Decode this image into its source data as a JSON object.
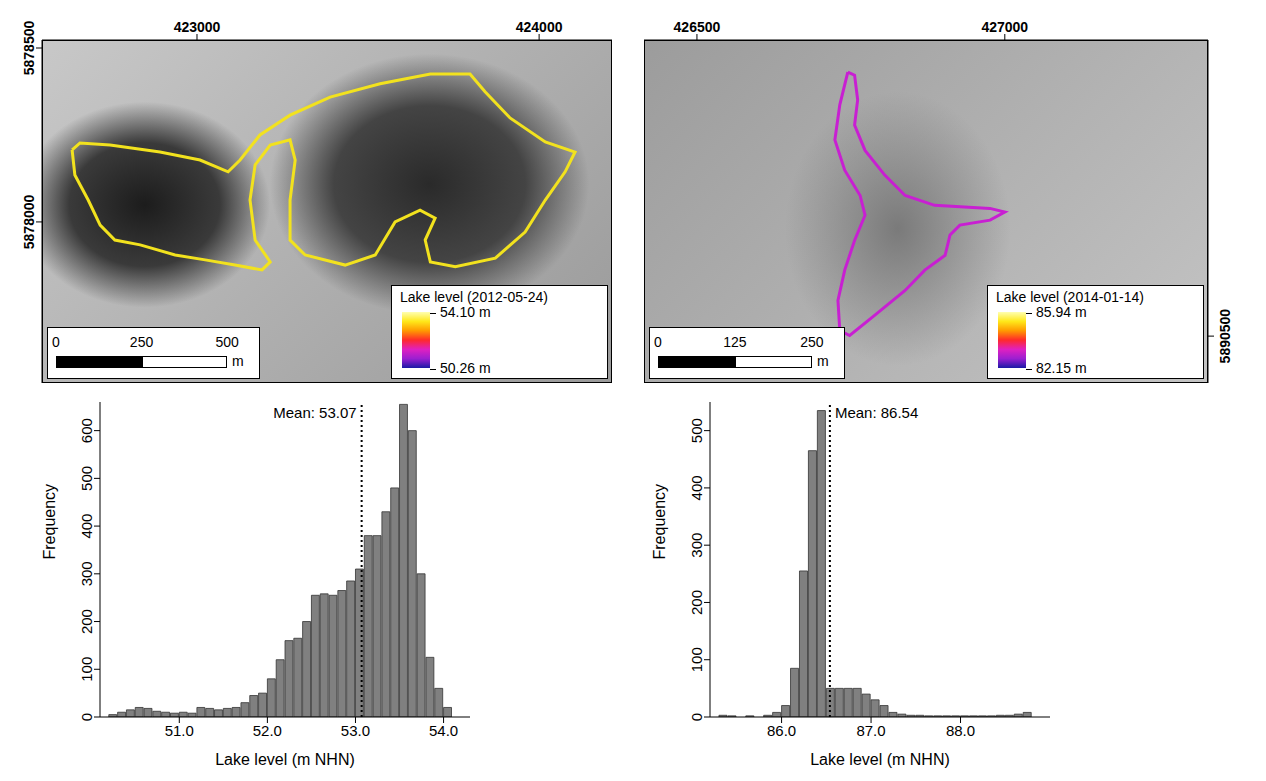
{
  "chart_data": [
    {
      "type": "map",
      "xlim": [
        422547,
        424213
      ],
      "ylim": [
        5877537,
        5878523
      ],
      "xticks": [
        423000,
        424000
      ],
      "yticks": [
        5878000,
        5878500
      ],
      "tick_labels": true,
      "x": [
        422635,
        422658,
        422746,
        422892,
        423009,
        423091,
        423126,
        423184,
        423272,
        423389,
        423535,
        423682,
        423798,
        423842,
        423915,
        424018,
        424105,
        424076,
        424018,
        423959,
        423872,
        423755,
        423682,
        423667,
        423696,
        423652,
        423579,
        423521,
        423433,
        423316,
        423272,
        423272,
        423287,
        423272,
        423214,
        423170,
        423155,
        423170,
        423214,
        423190,
        423111,
        423024,
        422936,
        422834,
        422760,
        422717,
        422682,
        422643,
        422635
      ],
      "y": [
        5878207,
        5878227,
        5878221,
        5878201,
        5878178,
        5878144,
        5878178,
        5878250,
        5878307,
        5878359,
        5878397,
        5878425,
        5878425,
        5878374,
        5878299,
        5878230,
        5878201,
        5878144,
        5878063,
        5877971,
        5877896,
        5877871,
        5877885,
        5877948,
        5878011,
        5878034,
        5878000,
        5877905,
        5877876,
        5877905,
        5877948,
        5878063,
        5878178,
        5878236,
        5878221,
        5878164,
        5878063,
        5877948,
        5877885,
        5877862,
        5877876,
        5877891,
        5877905,
        5877934,
        5877948,
        5877991,
        5878063,
        5878135,
        5878207
      ],
      "color": "#f2e21e",
      "colorbar": {
        "title": "Lake level (2012-05-24)",
        "range": [
          50.26,
          54.1
        ],
        "ticks": [
          {
            "value": 54.1,
            "label": "54.10 m"
          },
          {
            "value": 50.26,
            "label": "50.26 m"
          }
        ],
        "colors": [
          "#1a1aa6",
          "#9b1fd1",
          "#e020c0",
          "#ff2a2a",
          "#ff9a00",
          "#ffe81a",
          "#ffffb0"
        ]
      },
      "scale_bar": {
        "ticks": [
          0,
          250,
          500
        ],
        "unit": "m"
      }
    },
    {
      "type": "map",
      "xlim": [
        426414,
        427330
      ],
      "ylim": [
        5890424,
        5890980
      ],
      "xticks": [
        426500,
        427000
      ],
      "yticks": [
        5890500
      ],
      "tick_labels": true,
      "x": [
        426745,
        426756,
        426761,
        426756,
        426773,
        426805,
        426838,
        426886,
        426976,
        427000,
        426976,
        426927,
        426911,
        426903,
        426870,
        426838,
        426789,
        426748,
        426732,
        426729,
        426740,
        426756,
        426773,
        426765,
        426740,
        426724,
        426732,
        426745
      ],
      "y": [
        5890928,
        5890923,
        5890883,
        5890842,
        5890801,
        5890761,
        5890728,
        5890712,
        5890707,
        5890701,
        5890688,
        5890680,
        5890664,
        5890631,
        5890607,
        5890574,
        5890534,
        5890501,
        5890509,
        5890558,
        5890607,
        5890655,
        5890696,
        5890728,
        5890769,
        5890818,
        5890875,
        5890928
      ],
      "color": "#c81fd2",
      "colorbar": {
        "title": "Lake level (2014-01-14)",
        "range": [
          82.15,
          85.94
        ],
        "ticks": [
          {
            "value": 85.94,
            "label": "85.94 m"
          },
          {
            "value": 82.15,
            "label": "82.15 m"
          }
        ],
        "colors": [
          "#1a1aa6",
          "#9b1fd1",
          "#e020c0",
          "#ff2a2a",
          "#ff9a00",
          "#ffe81a",
          "#ffffb0"
        ]
      },
      "scale_bar": {
        "ticks": [
          0,
          125,
          250
        ],
        "unit": "m"
      }
    },
    {
      "type": "histogram",
      "x_label": "Lake level (m NHN)",
      "y_label": "Frequency",
      "color": "#808080",
      "bins": [
        50.2,
        50.3,
        50.4,
        50.5,
        50.6,
        50.7,
        50.8,
        50.9,
        51.0,
        51.1,
        51.2,
        51.3,
        51.4,
        51.5,
        51.6,
        51.7,
        51.8,
        51.9,
        52.0,
        52.1,
        52.2,
        52.3,
        52.4,
        52.5,
        52.6,
        52.7,
        52.8,
        52.9,
        53.0,
        53.1,
        53.2,
        53.3,
        53.4,
        53.5,
        53.6,
        53.7,
        53.8,
        53.9,
        54.0,
        54.1
      ],
      "values": [
        5,
        10,
        15,
        20,
        18,
        12,
        10,
        8,
        10,
        8,
        20,
        18,
        15,
        18,
        20,
        30,
        45,
        50,
        80,
        120,
        160,
        165,
        200,
        255,
        258,
        255,
        265,
        285,
        310,
        380,
        380,
        430,
        480,
        655,
        600,
        300,
        125,
        60,
        20
      ],
      "xlim": [
        50.1,
        54.3
      ],
      "ylim": [
        0,
        660
      ],
      "xticks": [
        {
          "value": 51,
          "label": "51.0"
        },
        {
          "value": 52,
          "label": "52.0"
        },
        {
          "value": 53,
          "label": "53.0"
        },
        {
          "value": 54,
          "label": "54.0"
        }
      ],
      "yticks": [
        0,
        100,
        200,
        300,
        400,
        500,
        600
      ],
      "mean": 53.07,
      "annotation": "Mean: 53.07"
    },
    {
      "type": "histogram",
      "x_label": "Lake level (m NHN)",
      "y_label": "Frequency",
      "color": "#808080",
      "bins": [
        85.3,
        85.4,
        85.5,
        85.6,
        85.7,
        85.8,
        85.9,
        86.0,
        86.1,
        86.2,
        86.3,
        86.4,
        86.5,
        86.6,
        86.7,
        86.8,
        86.9,
        87.0,
        87.1,
        87.2,
        87.3,
        87.4,
        87.5,
        87.6,
        87.7,
        87.8,
        87.9,
        88.0,
        88.1,
        88.2,
        88.3,
        88.4,
        88.5,
        88.6,
        88.7,
        88.8
      ],
      "values": [
        3,
        2,
        0,
        2,
        0,
        3,
        8,
        20,
        85,
        255,
        465,
        535,
        50,
        50,
        50,
        50,
        40,
        30,
        20,
        8,
        5,
        3,
        3,
        2,
        2,
        2,
        2,
        2,
        2,
        2,
        2,
        3,
        3,
        5,
        8
      ],
      "xlim": [
        85.2,
        89.0
      ],
      "ylim": [
        0,
        550
      ],
      "xticks": [
        {
          "value": 86,
          "label": "86.0"
        },
        {
          "value": 87,
          "label": "87.0"
        },
        {
          "value": 88,
          "label": "88.0"
        }
      ],
      "yticks": [
        0,
        100,
        200,
        300,
        400,
        500
      ],
      "mean": 86.54,
      "annotation": "Mean: 86.54"
    }
  ]
}
